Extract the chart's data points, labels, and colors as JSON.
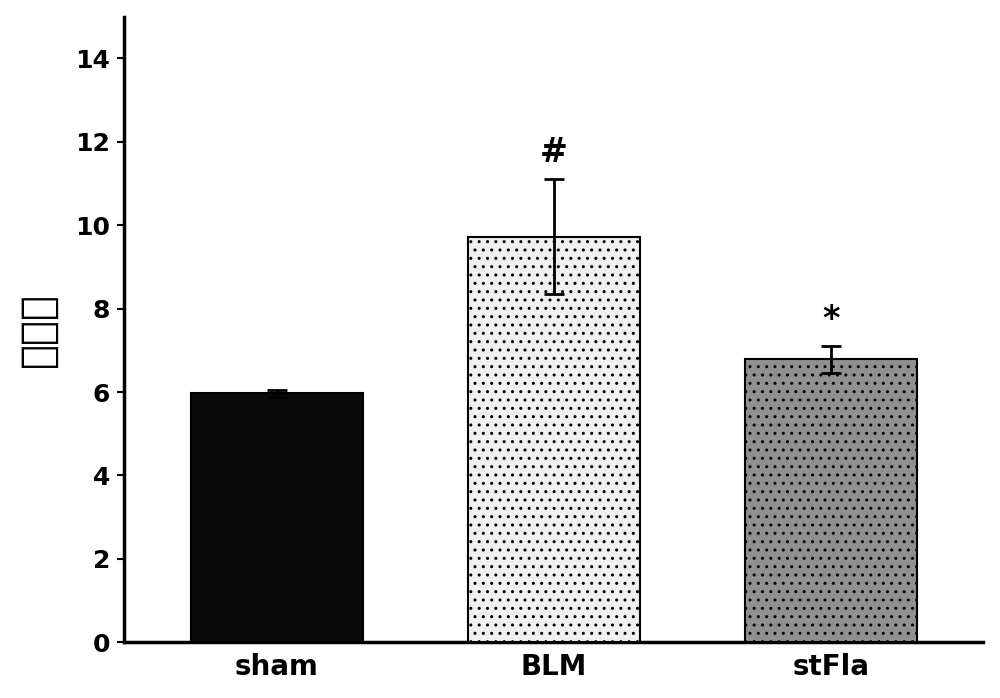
{
  "categories": [
    "sham",
    "BLM",
    "stFla"
  ],
  "values": [
    5.97,
    9.72,
    6.78
  ],
  "errors": [
    0.08,
    1.38,
    0.32
  ],
  "bar_colors": [
    "#0a0a0a",
    "#f0f0f0",
    "#909090"
  ],
  "bar_edgecolors": [
    "#000000",
    "#000000",
    "#000000"
  ],
  "hatch_patterns": [
    "",
    "..",
    ".."
  ],
  "ylabel": "肚指数",
  "ylim": [
    0,
    15
  ],
  "yticks": [
    0,
    2,
    4,
    6,
    8,
    10,
    12,
    14
  ],
  "annotations": [
    {
      "bar_idx": 1,
      "text": "#",
      "fontsize": 24
    },
    {
      "bar_idx": 2,
      "text": "*",
      "fontsize": 24
    }
  ],
  "xlabel_labels": [
    "sham",
    "BLM",
    "stFla"
  ],
  "bar_width": 0.62,
  "tick_fontsize": 18,
  "label_fontsize": 30,
  "annotation_fontsize": 24,
  "xlabel_fontsize": 20,
  "background_color": "#ffffff",
  "capsize": 7,
  "error_linewidth": 2
}
